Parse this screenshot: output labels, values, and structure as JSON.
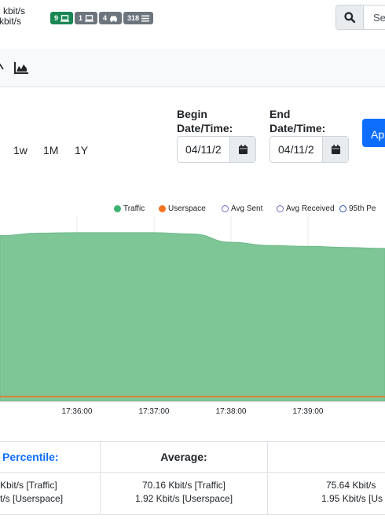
{
  "header": {
    "rate_line1": "kbit/s",
    "rate_line2": "kbit/s",
    "badges": [
      {
        "value": "9",
        "icon": "laptop-icon",
        "color": "#198754"
      },
      {
        "value": "1",
        "icon": "laptop-icon",
        "color": "#6c757d"
      },
      {
        "value": "4",
        "icon": "car-icon",
        "color": "#6c757d"
      },
      {
        "value": "318",
        "icon": "list-icon",
        "color": "#6c757d"
      }
    ],
    "search_placeholder": "Se"
  },
  "toolbar": {
    "icons": [
      "chart-icon",
      "area-chart-icon"
    ]
  },
  "controls": {
    "ranges": [
      "1w",
      "1M",
      "1Y"
    ],
    "begin_label_1": "Begin",
    "begin_label_2": "Date/Time:",
    "begin_value": "04/11/2",
    "end_label_1": "End",
    "end_label_2": "Date/Time:",
    "end_value": "04/11/2",
    "apply_label": "Ap"
  },
  "chart_data": {
    "type": "area",
    "legend": [
      {
        "name": "Traffic",
        "style": "filled",
        "color": "#3cb371"
      },
      {
        "name": "Userspace",
        "style": "filled",
        "color": "#f47321"
      },
      {
        "name": "Avg Sent",
        "style": "hollow",
        "color": "#7b68c8"
      },
      {
        "name": "Avg Received",
        "style": "hollow",
        "color": "#7b68c8"
      },
      {
        "name": "95th Pe",
        "style": "hollow",
        "color": "#2a52be"
      }
    ],
    "x_ticks": [
      "17:36:00",
      "17:37:00",
      "17:38:00",
      "17:39:00"
    ],
    "series": [
      {
        "name": "Traffic",
        "color": "#7fc697",
        "x": [
          "17:35:00",
          "17:35:30",
          "17:36:00",
          "17:36:30",
          "17:37:00",
          "17:37:30",
          "17:38:00",
          "17:38:30",
          "17:39:00",
          "17:39:30",
          "17:40:00"
        ],
        "values": [
          72.5,
          73.6,
          73.8,
          73.8,
          73.8,
          73.2,
          69.6,
          68.2,
          67.8,
          67.3,
          66.9
        ]
      },
      {
        "name": "Userspace",
        "color": "#f47321",
        "x": [
          "17:35:00",
          "17:40:00"
        ],
        "values": [
          1.9,
          1.9
        ]
      }
    ],
    "ylim": [
      0,
      81
    ],
    "grid": true,
    "legend_position": "top"
  },
  "stats": {
    "percentile_header": "Percentile:",
    "percentile_line1": "Kbit/s [Traffic]",
    "percentile_line2": "t/s [Userspace]",
    "average_header": "Average:",
    "average_line1": "70.16 Kbit/s [Traffic]",
    "average_line2": "1.92 Kbit/s [Userspace]",
    "third_line1": "75.64 Kbit/s",
    "third_line2": "1.95 Kbit/s [Us"
  }
}
